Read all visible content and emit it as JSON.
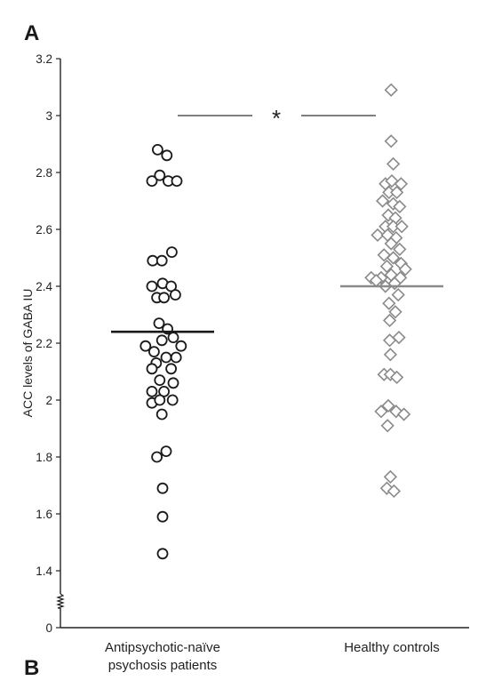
{
  "panel_labels": {
    "top": "A",
    "bottom": "B"
  },
  "chart_data": {
    "type": "scatter",
    "title": "",
    "xlabel": "",
    "ylabel": "ACC levels of GABA IU",
    "categories": [
      "Antipsychotic-naïve\npsychosis patients",
      "Healthy controls"
    ],
    "yticks": [
      "0",
      "1.4",
      "1.6",
      "1.8",
      "2",
      "2.2",
      "2.4",
      "2.6",
      "2.8",
      "3",
      "3.2"
    ],
    "axis_break": true,
    "ylim": [
      1.4,
      3.2
    ],
    "significance": {
      "label": "*",
      "y": 3.0
    },
    "series": [
      {
        "marker": "circle",
        "color": "#1a1a1a",
        "mean": 2.24,
        "points": [
          {
            "x": -0.35,
            "y": 2.88
          },
          {
            "x": 0.3,
            "y": 2.86
          },
          {
            "x": -0.75,
            "y": 2.77
          },
          {
            "x": -0.2,
            "y": 2.79
          },
          {
            "x": 0.4,
            "y": 2.77
          },
          {
            "x": 1.0,
            "y": 2.77
          },
          {
            "x": 0.65,
            "y": 2.52
          },
          {
            "x": -0.7,
            "y": 2.49
          },
          {
            "x": -0.05,
            "y": 2.49
          },
          {
            "x": -0.75,
            "y": 2.4
          },
          {
            "x": 0.0,
            "y": 2.41
          },
          {
            "x": 0.6,
            "y": 2.4
          },
          {
            "x": -0.4,
            "y": 2.36
          },
          {
            "x": 0.1,
            "y": 2.36
          },
          {
            "x": 0.9,
            "y": 2.37
          },
          {
            "x": -0.25,
            "y": 2.27
          },
          {
            "x": 0.35,
            "y": 2.25
          },
          {
            "x": -1.2,
            "y": 2.19
          },
          {
            "x": -0.6,
            "y": 2.17
          },
          {
            "x": -0.05,
            "y": 2.21
          },
          {
            "x": 0.75,
            "y": 2.22
          },
          {
            "x": 1.3,
            "y": 2.19
          },
          {
            "x": -0.45,
            "y": 2.13
          },
          {
            "x": 0.25,
            "y": 2.15
          },
          {
            "x": 0.95,
            "y": 2.15
          },
          {
            "x": -0.75,
            "y": 2.11
          },
          {
            "x": 0.6,
            "y": 2.11
          },
          {
            "x": -0.2,
            "y": 2.07
          },
          {
            "x": 0.75,
            "y": 2.06
          },
          {
            "x": -0.75,
            "y": 2.03
          },
          {
            "x": 0.1,
            "y": 2.03
          },
          {
            "x": -0.75,
            "y": 1.99
          },
          {
            "x": -0.2,
            "y": 2.0
          },
          {
            "x": 0.7,
            "y": 2.0
          },
          {
            "x": -0.05,
            "y": 1.95
          },
          {
            "x": 0.25,
            "y": 1.82
          },
          {
            "x": -0.4,
            "y": 1.8
          },
          {
            "x": 0.0,
            "y": 1.69
          },
          {
            "x": 0.0,
            "y": 1.59
          },
          {
            "x": 0.0,
            "y": 1.46
          }
        ]
      },
      {
        "marker": "diamond",
        "color": "#8a8a8a",
        "mean": 2.4,
        "points": [
          {
            "x": -0.05,
            "y": 3.09
          },
          {
            "x": -0.05,
            "y": 2.91
          },
          {
            "x": 0.1,
            "y": 2.83
          },
          {
            "x": -0.45,
            "y": 2.76
          },
          {
            "x": 0.0,
            "y": 2.77
          },
          {
            "x": 0.65,
            "y": 2.76
          },
          {
            "x": -0.2,
            "y": 2.73
          },
          {
            "x": 0.35,
            "y": 2.73
          },
          {
            "x": -0.65,
            "y": 2.7
          },
          {
            "x": 0.1,
            "y": 2.69
          },
          {
            "x": 0.55,
            "y": 2.68
          },
          {
            "x": -0.25,
            "y": 2.65
          },
          {
            "x": 0.25,
            "y": 2.64
          },
          {
            "x": -0.45,
            "y": 2.61
          },
          {
            "x": 0.1,
            "y": 2.61
          },
          {
            "x": 0.7,
            "y": 2.61
          },
          {
            "x": -1.0,
            "y": 2.58
          },
          {
            "x": -0.3,
            "y": 2.58
          },
          {
            "x": 0.3,
            "y": 2.57
          },
          {
            "x": -0.05,
            "y": 2.55
          },
          {
            "x": 0.55,
            "y": 2.53
          },
          {
            "x": -0.55,
            "y": 2.51
          },
          {
            "x": 0.1,
            "y": 2.5
          },
          {
            "x": 0.65,
            "y": 2.48
          },
          {
            "x": -0.35,
            "y": 2.47
          },
          {
            "x": 0.95,
            "y": 2.46
          },
          {
            "x": -1.45,
            "y": 2.43
          },
          {
            "x": -0.75,
            "y": 2.43
          },
          {
            "x": -0.05,
            "y": 2.44
          },
          {
            "x": 0.6,
            "y": 2.43
          },
          {
            "x": -1.1,
            "y": 2.42
          },
          {
            "x": -0.45,
            "y": 2.4
          },
          {
            "x": 0.2,
            "y": 2.41
          },
          {
            "x": 0.45,
            "y": 2.37
          },
          {
            "x": -0.2,
            "y": 2.34
          },
          {
            "x": 0.25,
            "y": 2.31
          },
          {
            "x": -0.15,
            "y": 2.28
          },
          {
            "x": 0.5,
            "y": 2.22
          },
          {
            "x": -0.15,
            "y": 2.21
          },
          {
            "x": -0.1,
            "y": 2.16
          },
          {
            "x": -0.55,
            "y": 2.09
          },
          {
            "x": -0.1,
            "y": 2.09
          },
          {
            "x": 0.35,
            "y": 2.08
          },
          {
            "x": -0.75,
            "y": 1.96
          },
          {
            "x": -0.25,
            "y": 1.98
          },
          {
            "x": 0.3,
            "y": 1.96
          },
          {
            "x": 0.85,
            "y": 1.95
          },
          {
            "x": -0.3,
            "y": 1.91
          },
          {
            "x": -0.1,
            "y": 1.73
          },
          {
            "x": -0.35,
            "y": 1.69
          },
          {
            "x": 0.15,
            "y": 1.68
          }
        ]
      }
    ]
  }
}
